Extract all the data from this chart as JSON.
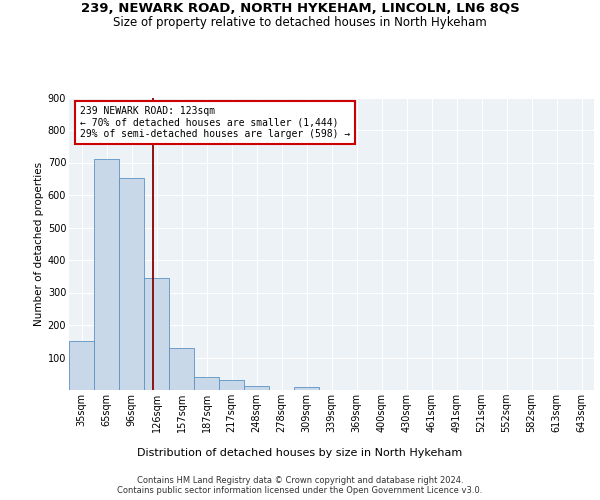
{
  "title1": "239, NEWARK ROAD, NORTH HYKEHAM, LINCOLN, LN6 8QS",
  "title2": "Size of property relative to detached houses in North Hykeham",
  "xlabel": "Distribution of detached houses by size in North Hykeham",
  "ylabel": "Number of detached properties",
  "categories": [
    "35sqm",
    "65sqm",
    "96sqm",
    "126sqm",
    "157sqm",
    "187sqm",
    "217sqm",
    "248sqm",
    "278sqm",
    "309sqm",
    "339sqm",
    "369sqm",
    "400sqm",
    "430sqm",
    "461sqm",
    "491sqm",
    "521sqm",
    "552sqm",
    "582sqm",
    "613sqm",
    "643sqm"
  ],
  "values": [
    150,
    711,
    651,
    344,
    129,
    40,
    30,
    11,
    0,
    10,
    0,
    0,
    0,
    0,
    0,
    0,
    0,
    0,
    0,
    0,
    0
  ],
  "bar_color": "#c8d8e8",
  "bar_edge_color": "#5b92c4",
  "vline_color": "#8b0000",
  "annotation_text": "239 NEWARK ROAD: 123sqm\n← 70% of detached houses are smaller (1,444)\n29% of semi-detached houses are larger (598) →",
  "annotation_box_color": "white",
  "annotation_box_edge": "#cc0000",
  "ylim": [
    0,
    900
  ],
  "yticks": [
    0,
    100,
    200,
    300,
    400,
    500,
    600,
    700,
    800,
    900
  ],
  "background_color": "#edf2f7",
  "footer": "Contains HM Land Registry data © Crown copyright and database right 2024.\nContains public sector information licensed under the Open Government Licence v3.0.",
  "title1_fontsize": 9.5,
  "title2_fontsize": 8.5,
  "xlabel_fontsize": 8,
  "ylabel_fontsize": 7.5,
  "tick_fontsize": 7,
  "annot_fontsize": 7
}
